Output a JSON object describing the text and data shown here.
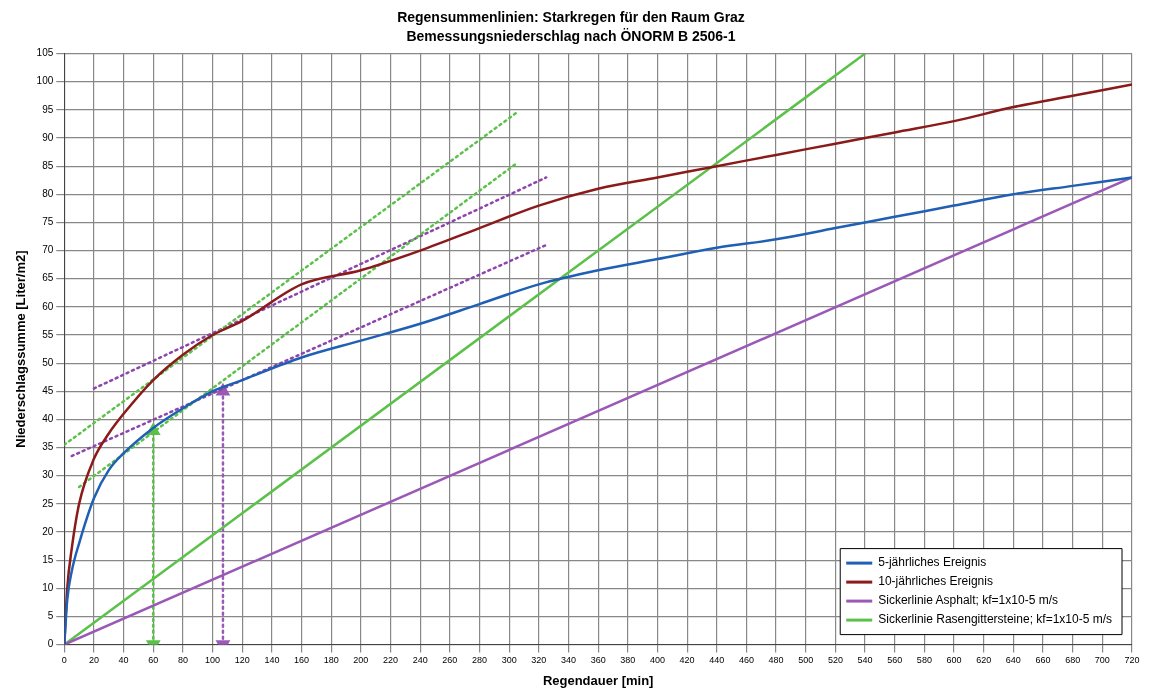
{
  "chart_data": {
    "type": "line",
    "title": "Regensummenlinien: Starkregen für den Raum Graz",
    "subtitle": "Bemessungsniederschlag nach ÖNORM B 2506-1",
    "xlabel": "Regendauer [min]",
    "ylabel": "Niederschlagssumme [Liter/m2]",
    "xlim": [
      0,
      720
    ],
    "xticks": [
      0,
      20,
      40,
      60,
      80,
      100,
      120,
      140,
      160,
      180,
      200,
      220,
      240,
      260,
      280,
      300,
      320,
      340,
      360,
      380,
      400,
      420,
      440,
      460,
      480,
      500,
      520,
      540,
      560,
      580,
      600,
      620,
      640,
      660,
      680,
      700,
      720
    ],
    "ylim": [
      0,
      105
    ],
    "yticks": [
      0,
      5,
      10,
      15,
      20,
      25,
      30,
      35,
      40,
      45,
      50,
      55,
      60,
      65,
      70,
      75,
      80,
      85,
      90,
      95,
      100,
      105
    ],
    "grid": true,
    "legend": "bottom right",
    "marker": "none",
    "line_style": "solid",
    "series": [
      {
        "name": "5-jährliches Ereignis",
        "color": "#1f5fb4",
        "x": [
          0,
          2,
          5,
          10,
          20,
          30,
          40,
          60,
          80,
          100,
          120,
          160,
          200,
          240,
          280,
          320,
          360,
          400,
          440,
          480,
          520,
          560,
          600,
          640,
          680,
          720
        ],
        "values": [
          0,
          8,
          13,
          18,
          26,
          31,
          34,
          38.5,
          42,
          45,
          47,
          51,
          54,
          57,
          60.5,
          64,
          66.5,
          68.5,
          70.5,
          72,
          74,
          76,
          78,
          80,
          81.5,
          83
        ]
      },
      {
        "name": "10-jährliches Ereignis",
        "color": "#8b1a1a",
        "x": [
          0,
          2,
          5,
          10,
          20,
          30,
          40,
          60,
          80,
          100,
          120,
          160,
          200,
          240,
          280,
          320,
          360,
          400,
          440,
          480,
          520,
          560,
          600,
          640,
          680,
          720
        ],
        "values": [
          0,
          10,
          17,
          25,
          33,
          37.5,
          41,
          47,
          51.5,
          55,
          57.5,
          64,
          66.5,
          70,
          74,
          78,
          81,
          83,
          85,
          87,
          89,
          91,
          93,
          95.5,
          97.5,
          99.5
        ]
      },
      {
        "name": "Sickerlinie Asphalt; kf=1x10-5 m/s",
        "color": "#9b59b6",
        "x": [
          0,
          720
        ],
        "values": [
          0,
          83
        ]
      },
      {
        "name": "Sickerlinie Rasengittersteine; kf=1x10-5 m/s",
        "color": "#5cc14a",
        "x": [
          0,
          540
        ],
        "values": [
          0,
          105
        ]
      },
      {
        "color": "#5cc14a",
        "line_style": "dotted",
        "x": [
          0,
          305
        ],
        "values": [
          35.5,
          94.5
        ]
      },
      {
        "color": "#5cc14a",
        "line_style": "dotted",
        "x": [
          10,
          305
        ],
        "values": [
          28,
          85.5
        ]
      },
      {
        "color": "#8e44ad",
        "line_style": "dotted",
        "x": [
          20,
          325
        ],
        "values": [
          45.5,
          83
        ]
      },
      {
        "color": "#8e44ad",
        "line_style": "dotted",
        "x": [
          5,
          325
        ],
        "values": [
          33.5,
          71
        ]
      },
      {
        "color": "#5cc14a",
        "line_style": "dotted",
        "marker": "triangle",
        "x": [
          60,
          60
        ],
        "values": [
          0,
          38
        ]
      },
      {
        "color": "#9b59b6",
        "line_style": "dotted",
        "marker": "triangle",
        "x": [
          107,
          107
        ],
        "values": [
          0,
          45
        ]
      }
    ]
  }
}
